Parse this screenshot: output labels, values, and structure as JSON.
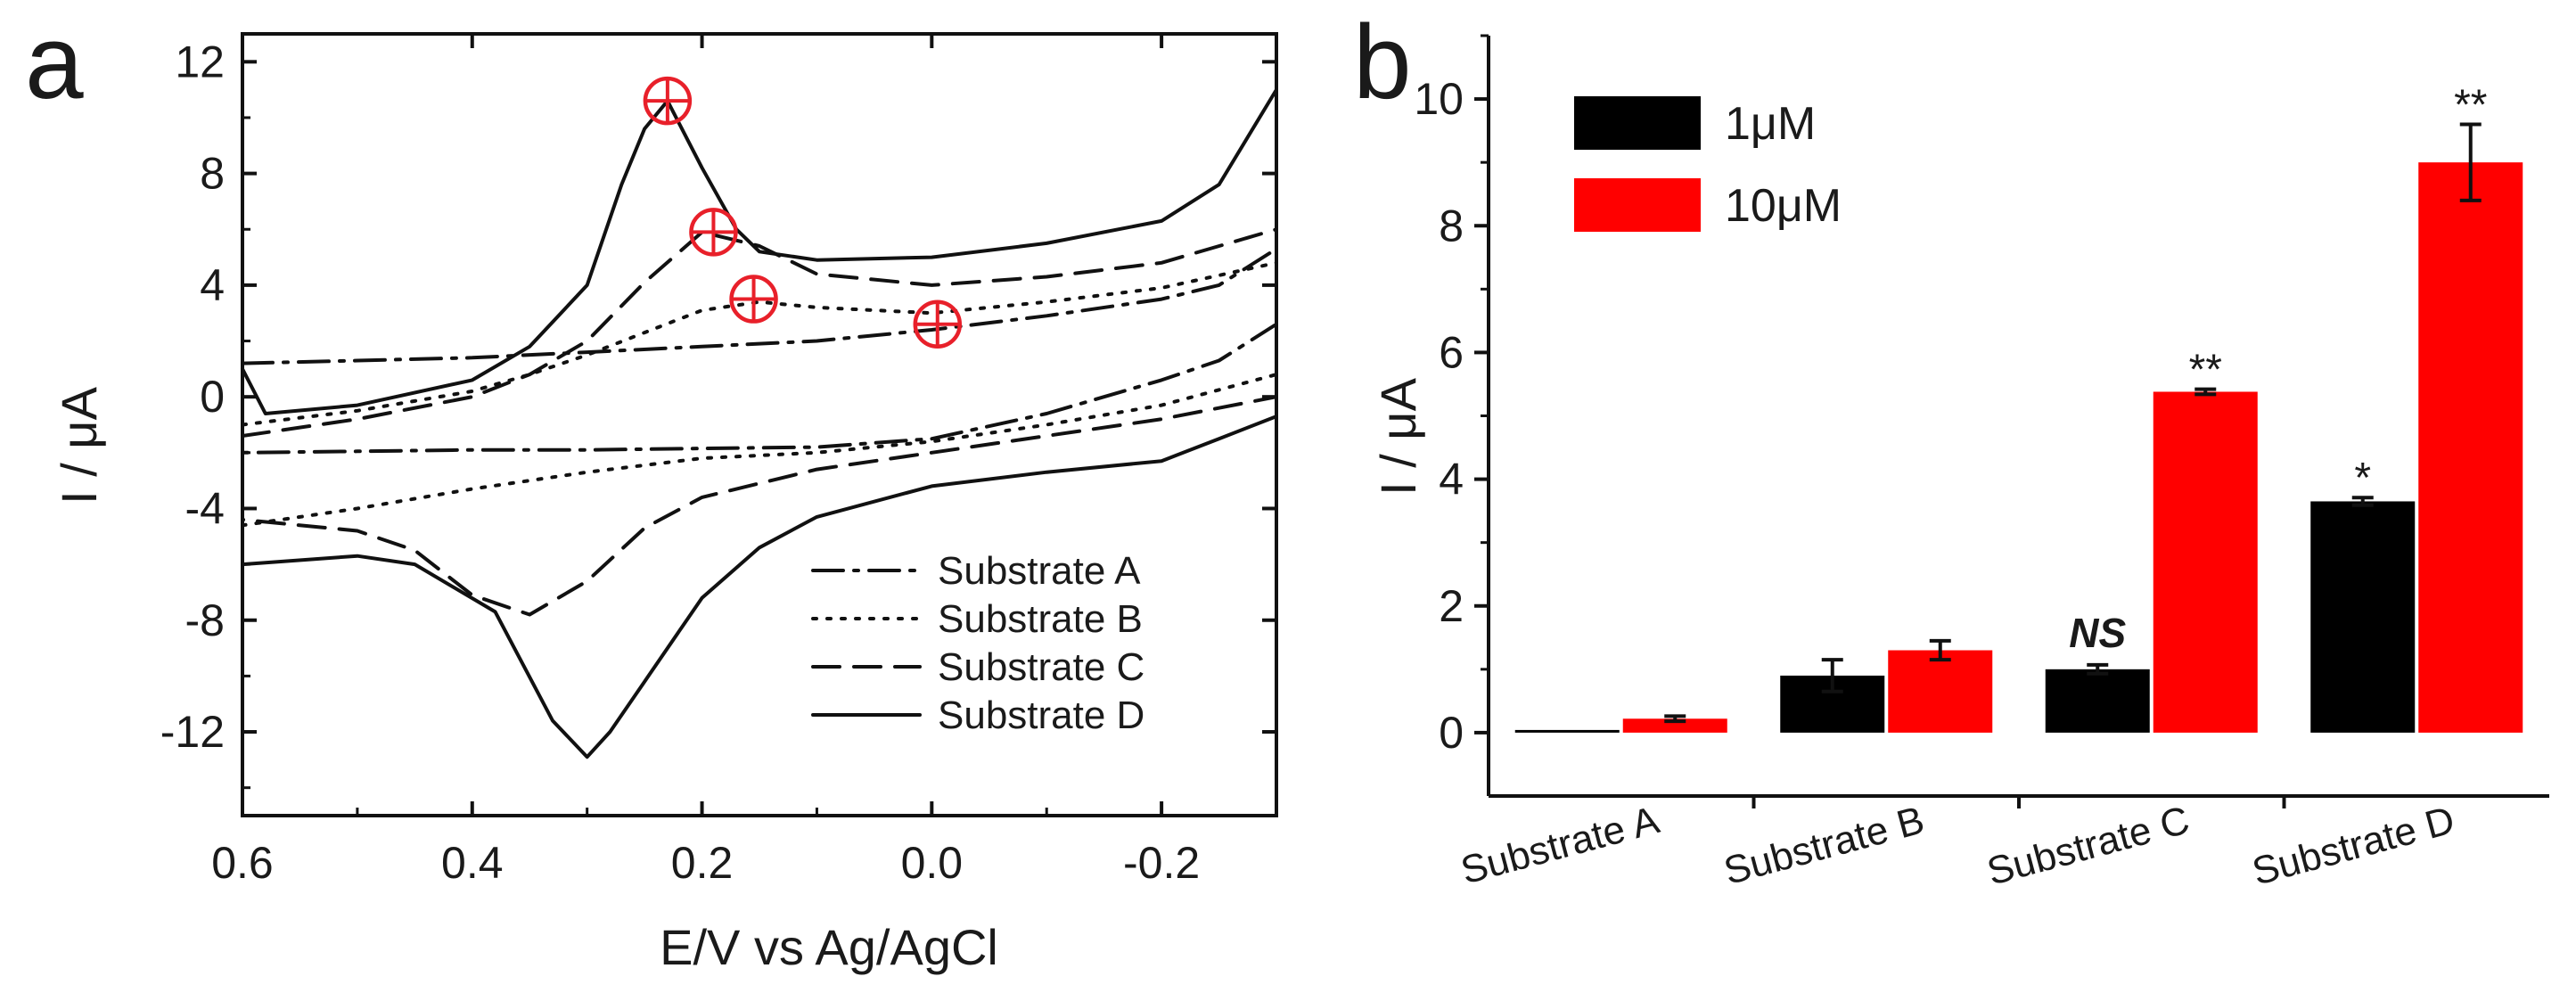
{
  "chart_data": [
    {
      "panel": "a",
      "type": "line",
      "xlabel": "E/V vs Ag/AgCl",
      "ylabel": "I / μA",
      "xlim": [
        0.6,
        -0.3
      ],
      "ylim": [
        -15,
        13
      ],
      "xticks": [
        "0.6",
        "0.4",
        "0.2",
        "0.0",
        "-0.2"
      ],
      "xtick_values": [
        0.6,
        0.4,
        0.2,
        0.0,
        -0.2
      ],
      "yticks": [
        "12",
        "8",
        "4",
        "0",
        "-4",
        "-8",
        "-12"
      ],
      "ytick_values": [
        12,
        8,
        4,
        0,
        -4,
        -8,
        -12
      ],
      "legend": [
        "Substrate A",
        "Substrate B",
        "Substrate C",
        "Substrate D"
      ],
      "legend_position": "bottom-right",
      "series": [
        {
          "name": "Substrate A",
          "style": "dash-dot",
          "x": [
            0.6,
            0.5,
            0.4,
            0.3,
            0.2,
            0.1,
            0.0,
            -0.1,
            -0.2,
            -0.25,
            -0.3,
            -0.3,
            -0.25,
            -0.2,
            -0.1,
            0.0,
            0.1,
            0.2,
            0.3,
            0.4,
            0.5,
            0.6
          ],
          "y": [
            1.2,
            1.3,
            1.4,
            1.6,
            1.8,
            2.0,
            2.4,
            2.9,
            3.5,
            4.0,
            5.3,
            2.6,
            1.3,
            0.6,
            -0.6,
            -1.5,
            -1.8,
            -1.85,
            -1.9,
            -1.9,
            -1.95,
            -2.0
          ]
        },
        {
          "name": "Substrate B",
          "style": "dotted",
          "x": [
            0.6,
            0.5,
            0.4,
            0.35,
            0.3,
            0.25,
            0.2,
            0.15,
            0.1,
            0.0,
            -0.1,
            -0.2,
            -0.3,
            -0.3,
            -0.2,
            -0.1,
            0.0,
            0.1,
            0.2,
            0.3,
            0.4,
            0.5,
            0.6
          ],
          "y": [
            -1.0,
            -0.5,
            0.2,
            0.8,
            1.5,
            2.3,
            3.1,
            3.4,
            3.2,
            3.0,
            3.4,
            3.9,
            4.8,
            0.8,
            -0.3,
            -1.0,
            -1.6,
            -2.0,
            -2.2,
            -2.7,
            -3.3,
            -4.0,
            -4.6
          ]
        },
        {
          "name": "Substrate C",
          "style": "dashed",
          "x": [
            0.6,
            0.5,
            0.4,
            0.35,
            0.3,
            0.25,
            0.2,
            0.15,
            0.1,
            0.0,
            -0.1,
            -0.2,
            -0.3,
            -0.3,
            -0.2,
            -0.1,
            0.0,
            0.1,
            0.2,
            0.25,
            0.3,
            0.35,
            0.4,
            0.45,
            0.5,
            0.6
          ],
          "y": [
            -1.4,
            -0.8,
            0.0,
            0.8,
            2.0,
            4.1,
            5.9,
            5.4,
            4.4,
            4.0,
            4.3,
            4.8,
            6.0,
            0.0,
            -0.8,
            -1.4,
            -2.0,
            -2.6,
            -3.6,
            -4.7,
            -6.6,
            -7.8,
            -7.1,
            -5.5,
            -4.8,
            -4.4
          ]
        },
        {
          "name": "Substrate D",
          "style": "solid",
          "x": [
            0.6,
            0.58,
            0.5,
            0.4,
            0.35,
            0.3,
            0.27,
            0.25,
            0.23,
            0.2,
            0.17,
            0.15,
            0.1,
            0.0,
            -0.1,
            -0.2,
            -0.25,
            -0.3,
            -0.3,
            -0.25,
            -0.2,
            -0.1,
            0.0,
            0.1,
            0.15,
            0.2,
            0.25,
            0.28,
            0.3,
            0.33,
            0.38,
            0.45,
            0.5,
            0.6
          ],
          "y": [
            1.0,
            -0.6,
            -0.3,
            0.6,
            1.8,
            4.0,
            7.6,
            9.6,
            10.6,
            8.2,
            6.0,
            5.2,
            4.9,
            5.0,
            5.5,
            6.3,
            7.6,
            11.0,
            -0.7,
            -1.5,
            -2.3,
            -2.7,
            -3.2,
            -4.3,
            -5.4,
            -7.2,
            -10.2,
            -12.0,
            -12.9,
            -11.6,
            -7.7,
            -6.0,
            -5.7,
            -6.0
          ]
        }
      ],
      "markers": [
        {
          "x": 0.23,
          "y": 10.6,
          "symbol": "circled-plus"
        },
        {
          "x": 0.19,
          "y": 5.9,
          "symbol": "circled-plus"
        },
        {
          "x": 0.155,
          "y": 3.5,
          "symbol": "circled-plus"
        },
        {
          "x": -0.005,
          "y": 2.6,
          "symbol": "circled-plus"
        }
      ],
      "marker_color": "#e8202a"
    },
    {
      "panel": "b",
      "type": "bar",
      "xlabel": "",
      "ylabel": "I / μA",
      "ylim": [
        -1,
        11
      ],
      "yticks": [
        "0",
        "2",
        "4",
        "6",
        "8",
        "10"
      ],
      "ytick_values": [
        0,
        2,
        4,
        6,
        8,
        10
      ],
      "categories": [
        "Substrate A",
        "Substrate B",
        "Substrate C",
        "Substrate D"
      ],
      "legend_position": "top-left",
      "series": [
        {
          "name": "1μM",
          "color": "#000000",
          "values": [
            0.0,
            0.9,
            1.0,
            3.65
          ],
          "errors": [
            0.0,
            0.25,
            0.07,
            0.06
          ],
          "annotations": [
            "",
            "",
            "NS",
            "*"
          ]
        },
        {
          "name": "10μM",
          "color": "#ff0000",
          "values": [
            0.22,
            1.3,
            5.38,
            9.0
          ],
          "errors": [
            0.04,
            0.15,
            0.04,
            0.6
          ],
          "annotations": [
            "",
            "",
            "**",
            "**"
          ]
        }
      ]
    }
  ]
}
